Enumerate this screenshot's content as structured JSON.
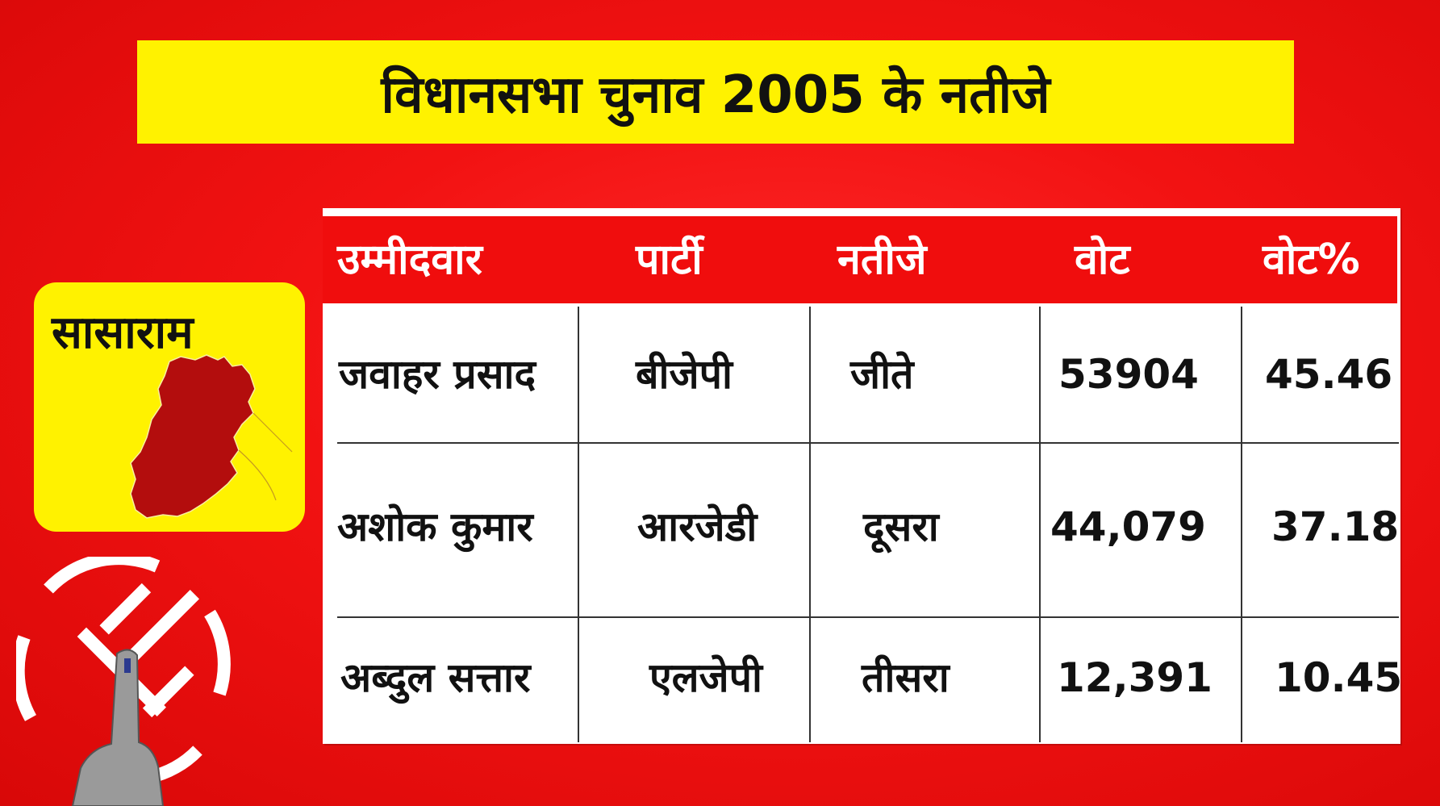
{
  "title": "विधानसभा चुनाव 2005 के नतीजे",
  "constituency": "सासाराम",
  "colors": {
    "background": "#f21212",
    "banner": "#fff200",
    "header_row": "#f00d0d",
    "map_fill": "#b30d0d"
  },
  "icons": [
    "constituency-map-icon",
    "election-symbol-icon",
    "voting-finger-icon"
  ],
  "table": {
    "headers": [
      "उम्मीदवार",
      "पार्टी",
      "नतीजे",
      "वोट",
      "वोट%"
    ],
    "rows": [
      [
        "जवाहर प्रसाद",
        "बीजेपी",
        "जीते",
        "53904",
        "45.46"
      ],
      [
        "अशोक कुमार",
        "आरजेडी",
        "दूसरा",
        "44,079",
        "37.18"
      ],
      [
        "अब्दुल सत्तार",
        "एलजेपी",
        "तीसरा",
        "12,391",
        "10.45"
      ]
    ]
  }
}
